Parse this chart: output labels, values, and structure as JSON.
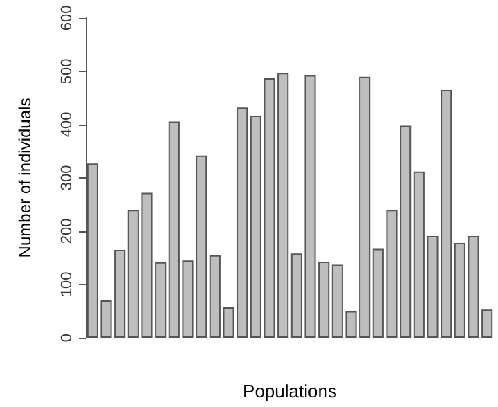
{
  "chart_data": {
    "type": "bar",
    "xlabel": "Populations",
    "ylabel": "Number of individuals",
    "categories": [
      null,
      null,
      null,
      null,
      null,
      null,
      null,
      null,
      null,
      null,
      null,
      null,
      null,
      null,
      null,
      null,
      null,
      null,
      null,
      null,
      null,
      null,
      null,
      null,
      null,
      null,
      null,
      null,
      null,
      null
    ],
    "values": [
      327,
      70,
      165,
      240,
      272,
      142,
      406,
      145,
      342,
      155,
      57,
      432,
      417,
      487,
      497,
      158,
      493,
      143,
      137,
      50,
      490,
      167,
      240,
      398,
      312,
      191,
      465,
      178,
      191,
      53
    ],
    "color": "#bebebe",
    "ylim": [
      0,
      600
    ],
    "yticks": [
      0,
      100,
      200,
      300,
      400,
      500,
      600
    ],
    "grid": false
  }
}
